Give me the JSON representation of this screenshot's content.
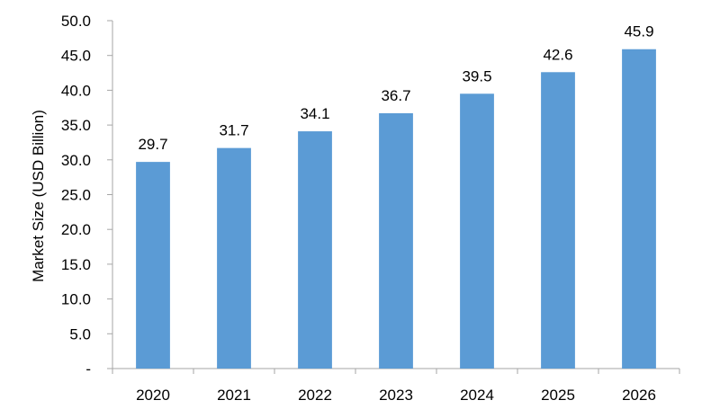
{
  "chart_data": {
    "type": "bar",
    "title": "",
    "xlabel": "",
    "ylabel": "Market Size (USD Billion)",
    "categories": [
      "2020",
      "2021",
      "2022",
      "2023",
      "2024",
      "2025",
      "2026"
    ],
    "values": [
      29.7,
      31.7,
      34.1,
      36.7,
      39.5,
      42.6,
      45.9
    ],
    "value_labels": [
      "29.7",
      "31.7",
      "34.1",
      "36.7",
      "39.5",
      "42.6",
      "45.9"
    ],
    "ylim": [
      0,
      50
    ],
    "yticks": [
      0,
      5,
      10,
      15,
      20,
      25,
      30,
      35,
      40,
      45,
      50
    ],
    "ytick_labels": [
      "-",
      "5.0",
      "10.0",
      "15.0",
      "20.0",
      "25.0",
      "30.0",
      "35.0",
      "40.0",
      "45.0",
      "50.0"
    ],
    "grid": false,
    "legend": "none",
    "colors": {
      "bar": "#5b9bd5",
      "axis": "#a6a6a6"
    }
  }
}
